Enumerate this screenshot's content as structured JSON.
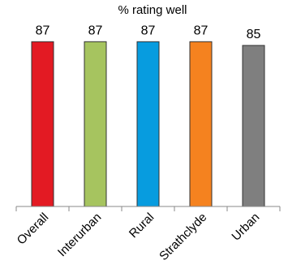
{
  "chart_data": {
    "type": "bar",
    "title": "% rating well",
    "categories": [
      "Overall",
      "Interurban",
      "Rural",
      "Strathclyde",
      "Urban"
    ],
    "values": [
      87,
      87,
      87,
      87,
      85
    ],
    "colors": [
      "#e31a23",
      "#a6c45f",
      "#079cdf",
      "#f5821f",
      "#7f7f7f"
    ],
    "ylim": [
      0,
      100
    ],
    "grid": false,
    "legend": "none"
  }
}
